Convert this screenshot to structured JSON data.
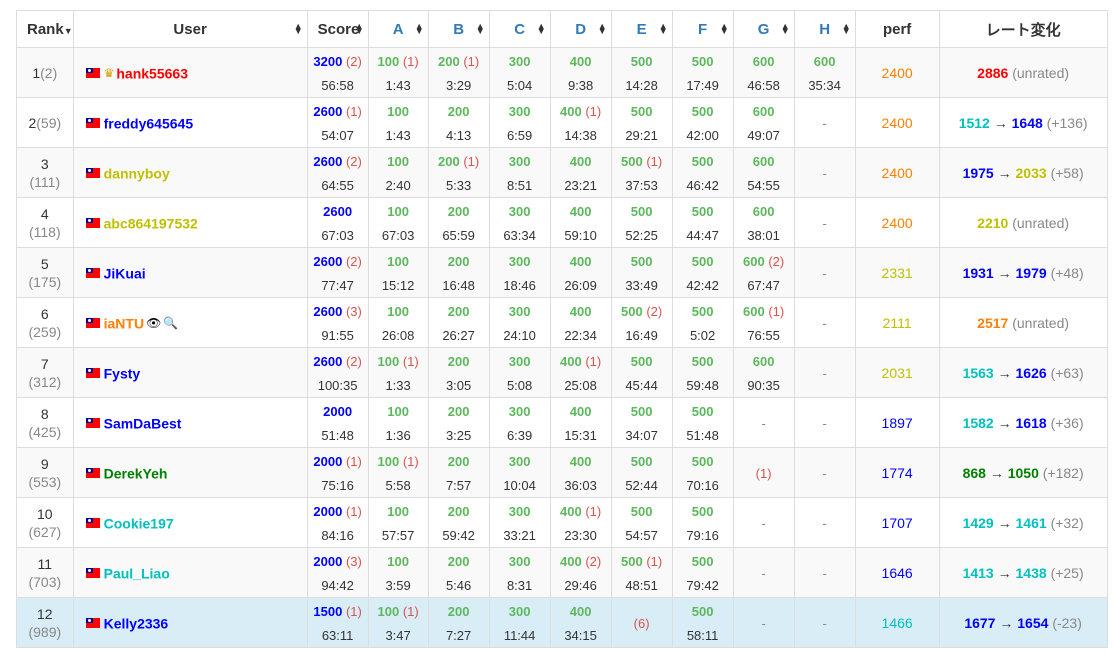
{
  "headers": {
    "rank": "Rank",
    "user": "User",
    "score": "Score",
    "problems": [
      "A",
      "B",
      "C",
      "D",
      "E",
      "F",
      "G",
      "H"
    ],
    "perf": "perf",
    "rating_change": "レート変化"
  },
  "colors": {
    "red": "#ff0000",
    "orange": "#ff8000",
    "yellow": "#c0c000",
    "blue": "#0000ff",
    "cyan": "#00c0c0",
    "green": "#008000",
    "penalty": "#d9534f",
    "accepted": "#5cb85c",
    "highlight_row": "#d9edf7"
  },
  "icons": {
    "sort": "sort-arrows-icon",
    "dropdown": "caret-down-icon",
    "flag": "taiwan-flag-icon",
    "crown": "crown-icon",
    "eye": "eye-icon",
    "search": "search-icon"
  },
  "rows": [
    {
      "rank": "1",
      "prev": "(2)",
      "name": "hank55663",
      "color": "red",
      "crown": true,
      "score": "3200",
      "score_pen": "(2)",
      "time": "56:58",
      "cells": [
        {
          "s": "100",
          "p": "(1)",
          "t": "1:43"
        },
        {
          "s": "200",
          "p": "(1)",
          "t": "3:29"
        },
        {
          "s": "300",
          "p": "",
          "t": "5:04"
        },
        {
          "s": "400",
          "p": "",
          "t": "9:38"
        },
        {
          "s": "500",
          "p": "",
          "t": "14:28"
        },
        {
          "s": "500",
          "p": "",
          "t": "17:49"
        },
        {
          "s": "600",
          "p": "",
          "t": "46:58"
        },
        {
          "s": "600",
          "p": "",
          "t": "35:34"
        }
      ],
      "perf": "2400",
      "perf_color": "orange",
      "rc": {
        "old": "2886",
        "old_color": "red",
        "new": "",
        "new_color": "",
        "note": "(unrated)"
      }
    },
    {
      "rank": "2",
      "prev": "(59)",
      "name": "freddy645645",
      "color": "blue",
      "score": "2600",
      "score_pen": "(1)",
      "time": "54:07",
      "cells": [
        {
          "s": "100",
          "p": "",
          "t": "1:43"
        },
        {
          "s": "200",
          "p": "",
          "t": "4:13"
        },
        {
          "s": "300",
          "p": "",
          "t": "6:59"
        },
        {
          "s": "400",
          "p": "(1)",
          "t": "14:38"
        },
        {
          "s": "500",
          "p": "",
          "t": "29:21"
        },
        {
          "s": "500",
          "p": "",
          "t": "42:00"
        },
        {
          "s": "600",
          "p": "",
          "t": "49:07"
        },
        {
          "dash": "-"
        }
      ],
      "perf": "2400",
      "perf_color": "orange",
      "rc": {
        "old": "1512",
        "old_color": "cyan",
        "new": "1648",
        "new_color": "blue",
        "note": "(+136)"
      }
    },
    {
      "rank": "3",
      "prev": "(111)",
      "name": "dannyboy",
      "color": "yellow",
      "score": "2600",
      "score_pen": "(2)",
      "time": "64:55",
      "cells": [
        {
          "s": "100",
          "p": "",
          "t": "2:40"
        },
        {
          "s": "200",
          "p": "(1)",
          "t": "5:33"
        },
        {
          "s": "300",
          "p": "",
          "t": "8:51"
        },
        {
          "s": "400",
          "p": "",
          "t": "23:21"
        },
        {
          "s": "500",
          "p": "(1)",
          "t": "37:53"
        },
        {
          "s": "500",
          "p": "",
          "t": "46:42"
        },
        {
          "s": "600",
          "p": "",
          "t": "54:55"
        },
        {
          "dash": "-"
        }
      ],
      "perf": "2400",
      "perf_color": "orange",
      "rc": {
        "old": "1975",
        "old_color": "blue",
        "new": "2033",
        "new_color": "yellow",
        "note": "(+58)"
      }
    },
    {
      "rank": "4",
      "prev": "(118)",
      "name": "abc864197532",
      "color": "yellow",
      "score": "2600",
      "score_pen": "",
      "time": "67:03",
      "cells": [
        {
          "s": "100",
          "p": "",
          "t": "67:03"
        },
        {
          "s": "200",
          "p": "",
          "t": "65:59"
        },
        {
          "s": "300",
          "p": "",
          "t": "63:34"
        },
        {
          "s": "400",
          "p": "",
          "t": "59:10"
        },
        {
          "s": "500",
          "p": "",
          "t": "52:25"
        },
        {
          "s": "500",
          "p": "",
          "t": "44:47"
        },
        {
          "s": "600",
          "p": "",
          "t": "38:01"
        },
        {
          "dash": "-"
        }
      ],
      "perf": "2400",
      "perf_color": "orange",
      "rc": {
        "old": "2210",
        "old_color": "yellow",
        "new": "",
        "new_color": "",
        "note": "(unrated)"
      }
    },
    {
      "rank": "5",
      "prev": "(175)",
      "name": "JiKuai",
      "color": "blue",
      "score": "2600",
      "score_pen": "(2)",
      "time": "77:47",
      "cells": [
        {
          "s": "100",
          "p": "",
          "t": "15:12"
        },
        {
          "s": "200",
          "p": "",
          "t": "16:48"
        },
        {
          "s": "300",
          "p": "",
          "t": "18:46"
        },
        {
          "s": "400",
          "p": "",
          "t": "26:09"
        },
        {
          "s": "500",
          "p": "",
          "t": "33:49"
        },
        {
          "s": "500",
          "p": "",
          "t": "42:42"
        },
        {
          "s": "600",
          "p": "(2)",
          "t": "67:47"
        },
        {
          "dash": "-"
        }
      ],
      "perf": "2331",
      "perf_color": "yellow",
      "rc": {
        "old": "1931",
        "old_color": "blue",
        "new": "1979",
        "new_color": "blue",
        "note": "(+48)"
      }
    },
    {
      "rank": "6",
      "prev": "(259)",
      "name": "iaNTU",
      "color": "orange",
      "extra": true,
      "score": "2600",
      "score_pen": "(3)",
      "time": "91:55",
      "cells": [
        {
          "s": "100",
          "p": "",
          "t": "26:08"
        },
        {
          "s": "200",
          "p": "",
          "t": "26:27"
        },
        {
          "s": "300",
          "p": "",
          "t": "24:10"
        },
        {
          "s": "400",
          "p": "",
          "t": "22:34"
        },
        {
          "s": "500",
          "p": "(2)",
          "t": "16:49"
        },
        {
          "s": "500",
          "p": "",
          "t": "5:02"
        },
        {
          "s": "600",
          "p": "(1)",
          "t": "76:55"
        },
        {
          "dash": "-"
        }
      ],
      "perf": "2111",
      "perf_color": "yellow",
      "rc": {
        "old": "2517",
        "old_color": "orange",
        "new": "",
        "new_color": "",
        "note": "(unrated)"
      }
    },
    {
      "rank": "7",
      "prev": "(312)",
      "name": "Fysty",
      "color": "blue",
      "score": "2600",
      "score_pen": "(2)",
      "time": "100:35",
      "cells": [
        {
          "s": "100",
          "p": "(1)",
          "t": "1:33"
        },
        {
          "s": "200",
          "p": "",
          "t": "3:05"
        },
        {
          "s": "300",
          "p": "",
          "t": "5:08"
        },
        {
          "s": "400",
          "p": "(1)",
          "t": "25:08"
        },
        {
          "s": "500",
          "p": "",
          "t": "45:44"
        },
        {
          "s": "500",
          "p": "",
          "t": "59:48"
        },
        {
          "s": "600",
          "p": "",
          "t": "90:35"
        },
        {
          "dash": "-"
        }
      ],
      "perf": "2031",
      "perf_color": "yellow",
      "rc": {
        "old": "1563",
        "old_color": "cyan",
        "new": "1626",
        "new_color": "blue",
        "note": "(+63)"
      }
    },
    {
      "rank": "8",
      "prev": "(425)",
      "name": "SamDaBest",
      "color": "blue",
      "score": "2000",
      "score_pen": "",
      "time": "51:48",
      "cells": [
        {
          "s": "100",
          "p": "",
          "t": "1:36"
        },
        {
          "s": "200",
          "p": "",
          "t": "3:25"
        },
        {
          "s": "300",
          "p": "",
          "t": "6:39"
        },
        {
          "s": "400",
          "p": "",
          "t": "15:31"
        },
        {
          "s": "500",
          "p": "",
          "t": "34:07"
        },
        {
          "s": "500",
          "p": "",
          "t": "51:48"
        },
        {
          "dash": "-"
        },
        {
          "dash": "-"
        }
      ],
      "perf": "1897",
      "perf_color": "blue",
      "rc": {
        "old": "1582",
        "old_color": "cyan",
        "new": "1618",
        "new_color": "blue",
        "note": "(+36)"
      }
    },
    {
      "rank": "9",
      "prev": "(553)",
      "name": "DerekYeh",
      "color": "green",
      "score": "2000",
      "score_pen": "(1)",
      "time": "75:16",
      "cells": [
        {
          "s": "100",
          "p": "(1)",
          "t": "5:58"
        },
        {
          "s": "200",
          "p": "",
          "t": "7:57"
        },
        {
          "s": "300",
          "p": "",
          "t": "10:04"
        },
        {
          "s": "400",
          "p": "",
          "t": "36:03"
        },
        {
          "s": "500",
          "p": "",
          "t": "52:44"
        },
        {
          "s": "500",
          "p": "",
          "t": "70:16"
        },
        {
          "only": "(1)"
        },
        {
          "dash": "-"
        }
      ],
      "perf": "1774",
      "perf_color": "blue",
      "rc": {
        "old": "868",
        "old_color": "green",
        "new": "1050",
        "new_color": "green",
        "note": "(+182)"
      }
    },
    {
      "rank": "10",
      "prev": "(627)",
      "name": "Cookie197",
      "color": "cyan",
      "score": "2000",
      "score_pen": "(1)",
      "time": "84:16",
      "cells": [
        {
          "s": "100",
          "p": "",
          "t": "57:57"
        },
        {
          "s": "200",
          "p": "",
          "t": "59:42"
        },
        {
          "s": "300",
          "p": "",
          "t": "33:21"
        },
        {
          "s": "400",
          "p": "(1)",
          "t": "23:30"
        },
        {
          "s": "500",
          "p": "",
          "t": "54:57"
        },
        {
          "s": "500",
          "p": "",
          "t": "79:16"
        },
        {
          "dash": "-"
        },
        {
          "dash": "-"
        }
      ],
      "perf": "1707",
      "perf_color": "blue",
      "rc": {
        "old": "1429",
        "old_color": "cyan",
        "new": "1461",
        "new_color": "cyan",
        "note": "(+32)"
      }
    },
    {
      "rank": "11",
      "prev": "(703)",
      "name": "Paul_Liao",
      "color": "cyan",
      "score": "2000",
      "score_pen": "(3)",
      "time": "94:42",
      "cells": [
        {
          "s": "100",
          "p": "",
          "t": "3:59"
        },
        {
          "s": "200",
          "p": "",
          "t": "5:46"
        },
        {
          "s": "300",
          "p": "",
          "t": "8:31"
        },
        {
          "s": "400",
          "p": "(2)",
          "t": "29:46"
        },
        {
          "s": "500",
          "p": "(1)",
          "t": "48:51"
        },
        {
          "s": "500",
          "p": "",
          "t": "79:42"
        },
        {
          "dash": "-"
        },
        {
          "dash": "-"
        }
      ],
      "perf": "1646",
      "perf_color": "blue",
      "rc": {
        "old": "1413",
        "old_color": "cyan",
        "new": "1438",
        "new_color": "cyan",
        "note": "(+25)"
      }
    },
    {
      "rank": "12",
      "prev": "(989)",
      "name": "Kelly2336",
      "color": "blue",
      "me": true,
      "score": "1500",
      "score_pen": "(1)",
      "time": "63:11",
      "cells": [
        {
          "s": "100",
          "p": "(1)",
          "t": "3:47"
        },
        {
          "s": "200",
          "p": "",
          "t": "7:27"
        },
        {
          "s": "300",
          "p": "",
          "t": "11:44"
        },
        {
          "s": "400",
          "p": "",
          "t": "34:15"
        },
        {
          "only": "(6)"
        },
        {
          "s": "500",
          "p": "",
          "t": "58:11"
        },
        {
          "dash": "-"
        },
        {
          "dash": "-"
        }
      ],
      "perf": "1466",
      "perf_color": "cyan",
      "rc": {
        "old": "1677",
        "old_color": "blue",
        "new": "1654",
        "new_color": "blue",
        "note": "(-23)"
      }
    }
  ]
}
